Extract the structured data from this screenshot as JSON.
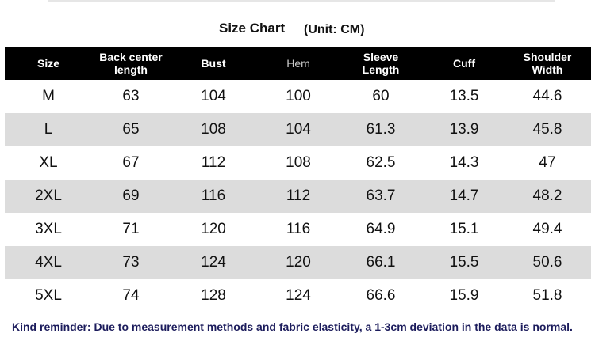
{
  "header": {
    "title": "Size Chart",
    "unit": "(Unit: CM)"
  },
  "table": {
    "columns": [
      "Size",
      "Back center\nlength",
      "Bust",
      "Hem",
      "Sleeve\nLength",
      "Cuff",
      "Shoulder\nWidth"
    ],
    "rows": [
      [
        "M",
        63,
        104,
        100,
        60,
        13.5,
        44.6
      ],
      [
        "L",
        65,
        108,
        104,
        61.3,
        13.9,
        45.8
      ],
      [
        "XL",
        67,
        112,
        108,
        62.5,
        14.3,
        47
      ],
      [
        "2XL",
        69,
        116,
        112,
        63.7,
        14.7,
        48.2
      ],
      [
        "3XL",
        71,
        120,
        116,
        64.9,
        15.1,
        49.4
      ],
      [
        "4XL",
        73,
        124,
        120,
        66.1,
        15.5,
        50.6
      ],
      [
        "5XL",
        74,
        128,
        124,
        66.6,
        15.9,
        51.8
      ]
    ]
  },
  "footer": {
    "note": "Kind reminder: Due to measurement methods and fabric elasticity, a 1-3cm deviation in the data is normal."
  }
}
